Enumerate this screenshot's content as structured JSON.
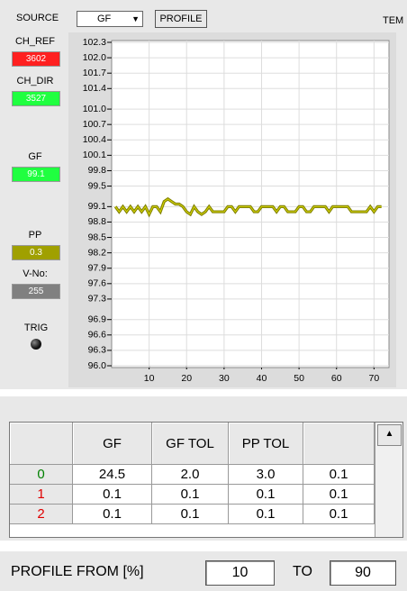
{
  "toolbar": {
    "source_label": "SOURCE",
    "source_value": "GF",
    "profile_button": "PROFILE",
    "cut_label": "TEM"
  },
  "channels": [
    {
      "label": "CH_REF",
      "value": 3602,
      "color": "#ff2020"
    },
    {
      "label": "CH_DIR",
      "value": 3527,
      "color": "#20ff40"
    },
    {
      "label": "GF",
      "value": 99.1,
      "color": "#20ff40"
    },
    {
      "label": "PP",
      "value": 0.3,
      "color": "#a0a000"
    },
    {
      "label": "V-No:",
      "value": 255,
      "color": "#808080"
    }
  ],
  "trig_label": "TRIG",
  "chart_data": {
    "type": "line",
    "ylim": [
      96.0,
      102.3
    ],
    "yticks": [
      102.3,
      {
        "value": 102,
        "label": "102.0"
      },
      101.7,
      101.4,
      {
        "value": 101,
        "label": "101.0"
      },
      100.7,
      100.4,
      100.1,
      99.8,
      99.5,
      99.1,
      98.8,
      98.5,
      98.2,
      97.9,
      97.6,
      97.3,
      96.9,
      96.6,
      96.3,
      {
        "value": 96,
        "label": "96.0"
      }
    ],
    "xlim": [
      0,
      74
    ],
    "xticks": [
      10,
      20,
      30,
      40,
      50,
      60,
      70
    ],
    "grid": true,
    "x": [
      1,
      2,
      3,
      4,
      5,
      6,
      7,
      8,
      9,
      10,
      11,
      12,
      13,
      14,
      15,
      16,
      17,
      18,
      19,
      20,
      21,
      22,
      23,
      24,
      25,
      26,
      27,
      28,
      29,
      30,
      31,
      32,
      33,
      34,
      35,
      36,
      37,
      38,
      39,
      40,
      41,
      42,
      43,
      44,
      45,
      46,
      47,
      48,
      49,
      50,
      51,
      52,
      53,
      54,
      55,
      56,
      57,
      58,
      59,
      60,
      61,
      62,
      63,
      64,
      65,
      66,
      67,
      68,
      69,
      70,
      71,
      72
    ],
    "series": [
      {
        "color": "#808000",
        "values": [
          99.1,
          99.0,
          99.1,
          99.0,
          99.1,
          99.0,
          99.1,
          99.0,
          99.1,
          98.95,
          99.1,
          99.1,
          99.0,
          99.2,
          99.25,
          99.2,
          99.15,
          99.15,
          99.1,
          99.0,
          98.95,
          99.1,
          99.0,
          98.95,
          99.0,
          99.1,
          99.0,
          99.0,
          99.0,
          99.0,
          99.1,
          99.1,
          99.0,
          99.1,
          99.1,
          99.1,
          99.1,
          99.0,
          99.0,
          99.1,
          99.1,
          99.1,
          99.1,
          99.0,
          99.1,
          99.1,
          99.0,
          99.0,
          99.0,
          99.1,
          99.1,
          99.0,
          99.0,
          99.1,
          99.1,
          99.1,
          99.1,
          99.0,
          99.1,
          99.1,
          99.1,
          99.1,
          99.1,
          99.0,
          99.0,
          99.0,
          99.0,
          99.0,
          99.1,
          99.0,
          99.1,
          99.1
        ]
      }
    ]
  },
  "table": {
    "header": [
      "",
      "GF",
      "GF TOL",
      "PP TOL",
      ""
    ],
    "rows": [
      [
        "0",
        "24.5",
        "2.0",
        "3.0",
        "0.1"
      ],
      [
        "1",
        "0.1",
        "0.1",
        "0.1",
        "0.1"
      ],
      [
        "2",
        "0.1",
        "0.1",
        "0.1",
        "0.1"
      ]
    ],
    "row_label_colors": [
      "#008000",
      "#e00000",
      "#e00000"
    ]
  },
  "profile": {
    "from_label": "PROFILE FROM [%]",
    "from_value": 10,
    "to_label": "TO",
    "to_value": 90
  }
}
